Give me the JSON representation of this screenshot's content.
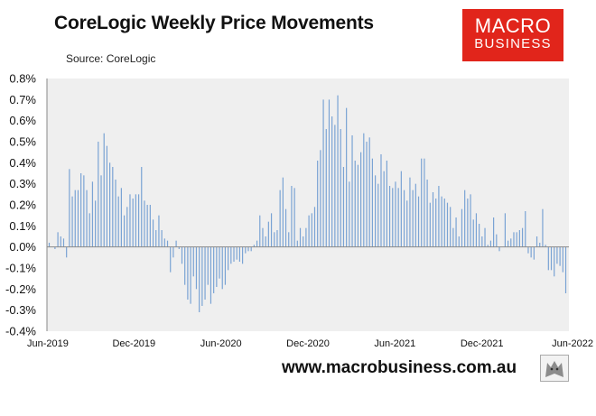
{
  "header": {
    "title": "CoreLogic Weekly Price Movements",
    "subtitle": "Source: CoreLogic"
  },
  "logo": {
    "line1": "MACRO",
    "line2": "BUSINESS",
    "bg_color": "#e1251b"
  },
  "footer": {
    "url": "www.macrobusiness.com.au",
    "icon": "wolf-logo-icon"
  },
  "chart_data": {
    "type": "bar",
    "title": "CoreLogic Weekly Price Movements",
    "subtitle": "Source: CoreLogic",
    "xlabel": "",
    "ylabel": "",
    "ylim": [
      -0.4,
      0.8
    ],
    "yticks": [
      "0.8%",
      "0.7%",
      "0.6%",
      "0.5%",
      "0.4%",
      "0.3%",
      "0.2%",
      "0.1%",
      "0.0%",
      "-0.1%",
      "-0.2%",
      "-0.3%",
      "-0.4%"
    ],
    "xticks": [
      "Jun-2019",
      "Dec-2019",
      "Jun-2020",
      "Dec-2020",
      "Jun-2021",
      "Dec-2021",
      "Jun-2022"
    ],
    "x_start": "Jun-2019",
    "x_end": "Jun-2022",
    "grid": false,
    "plot_bg": "#efefef",
    "bar_color": "#7aa3d4",
    "series": [
      {
        "values": [
          0.02,
          0.0,
          -0.01,
          0.07,
          0.05,
          0.04,
          -0.05,
          0.37,
          0.24,
          0.27,
          0.27,
          0.35,
          0.34,
          0.27,
          0.16,
          0.31,
          0.22,
          0.5,
          0.34,
          0.54,
          0.48,
          0.4,
          0.38,
          0.32,
          0.24,
          0.28,
          0.15,
          0.19,
          0.25,
          0.23,
          0.25,
          0.25,
          0.38,
          0.22,
          0.2,
          0.2,
          0.13,
          0.08,
          0.15,
          0.08,
          0.04,
          0.03,
          -0.12,
          -0.05,
          0.03,
          -0.01,
          -0.08,
          -0.18,
          -0.25,
          -0.27,
          -0.14,
          -0.2,
          -0.31,
          -0.28,
          -0.25,
          -0.18,
          -0.27,
          -0.22,
          -0.19,
          -0.15,
          -0.2,
          -0.18,
          -0.11,
          -0.08,
          -0.07,
          -0.06,
          -0.07,
          -0.08,
          -0.03,
          -0.02,
          -0.02,
          0.01,
          0.03,
          0.15,
          0.09,
          0.05,
          0.12,
          0.16,
          0.07,
          0.08,
          0.27,
          0.33,
          0.18,
          0.07,
          0.29,
          0.28,
          0.03,
          0.09,
          0.05,
          0.09,
          0.15,
          0.16,
          0.19,
          0.41,
          0.46,
          0.7,
          0.56,
          0.7,
          0.62,
          0.58,
          0.72,
          0.56,
          0.38,
          0.66,
          0.31,
          0.53,
          0.41,
          0.39,
          0.45,
          0.54,
          0.5,
          0.52,
          0.42,
          0.34,
          0.3,
          0.44,
          0.36,
          0.41,
          0.29,
          0.28,
          0.31,
          0.28,
          0.36,
          0.27,
          0.22,
          0.33,
          0.27,
          0.3,
          0.24,
          0.42,
          0.42,
          0.32,
          0.21,
          0.26,
          0.23,
          0.29,
          0.24,
          0.23,
          0.21,
          0.19,
          0.09,
          0.14,
          0.05,
          0.18,
          0.27,
          0.23,
          0.25,
          0.13,
          0.16,
          0.11,
          0.05,
          0.09,
          0.01,
          0.03,
          0.14,
          0.06,
          -0.02,
          0.0,
          0.16,
          0.03,
          0.04,
          0.07,
          0.07,
          0.08,
          0.09,
          0.17,
          -0.03,
          -0.05,
          -0.06,
          0.05,
          0.02,
          0.18,
          0.01,
          -0.11,
          -0.11,
          -0.14,
          -0.08,
          -0.09,
          -0.12,
          -0.22
        ]
      }
    ]
  }
}
